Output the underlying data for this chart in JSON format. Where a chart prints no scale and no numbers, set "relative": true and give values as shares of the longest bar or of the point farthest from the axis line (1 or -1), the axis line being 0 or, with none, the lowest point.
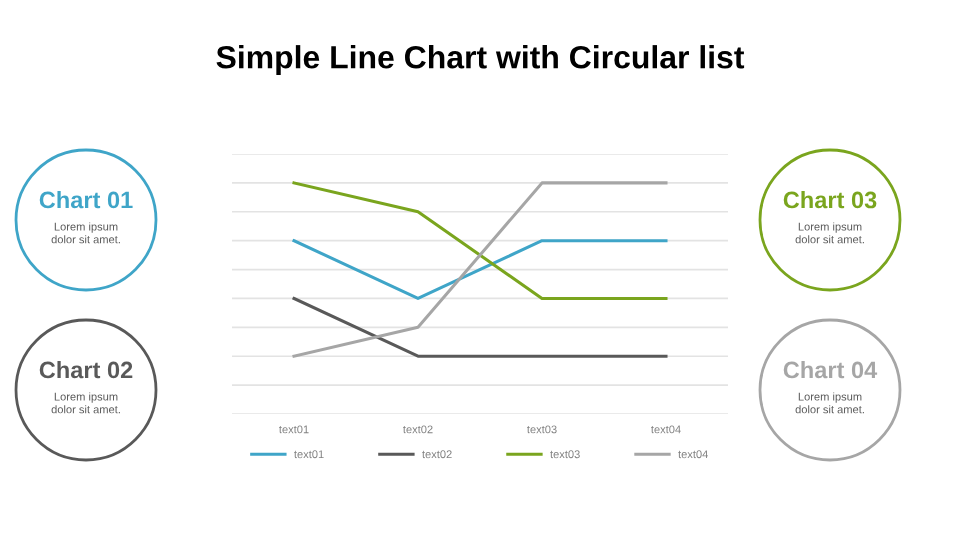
{
  "chart_data": {
    "type": "line",
    "title": "Simple Line Chart with Circular list",
    "relative": true,
    "grid": "y",
    "legend": "bottom",
    "marker": "none",
    "line_style": "solid",
    "categories": [
      "text01",
      "text02",
      "text03",
      "text04"
    ],
    "series": [
      {
        "name": "text01",
        "color": "#3fa5c8",
        "values": [
          0.75,
          0.5,
          0.75,
          0.75
        ]
      },
      {
        "name": "text02",
        "color": "#595959",
        "values": [
          0.5,
          0.25,
          0.25,
          0.25
        ]
      },
      {
        "name": "text03",
        "color": "#7aa51e",
        "values": [
          1,
          0.875,
          0.5,
          0.5
        ]
      },
      {
        "name": "text04",
        "color": "#a6a6a6",
        "values": [
          0.25,
          0.375,
          1,
          1
        ]
      }
    ],
    "annotations": [
      "Chart 01",
      "Lorem ipsum\ndolor sit amet.",
      "Chart 02",
      "Lorem ipsum\ndolor sit amet.",
      "Chart 03",
      "Lorem ipsum\ndolor sit amet.",
      "Chart 04",
      "Lorem ipsum\ndolor sit amet."
    ]
  }
}
